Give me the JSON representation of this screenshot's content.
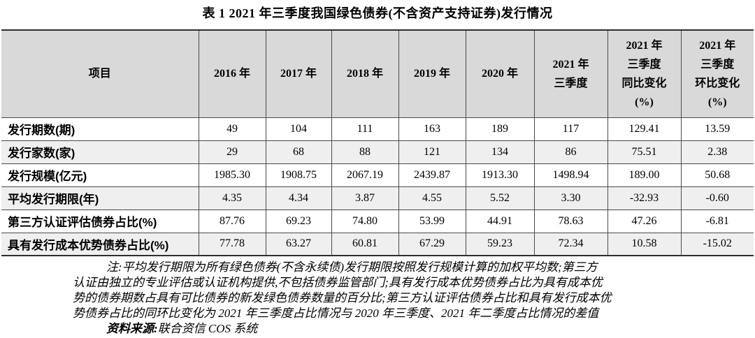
{
  "title": "表 1 2021 年三季度我国绿色债券(不含资产支持证券)发行情况",
  "table": {
    "header": [
      {
        "lines": [
          "项目"
        ]
      },
      {
        "lines": [
          "2016 年"
        ]
      },
      {
        "lines": [
          "2017 年"
        ]
      },
      {
        "lines": [
          "2018 年"
        ]
      },
      {
        "lines": [
          "2019 年"
        ]
      },
      {
        "lines": [
          "2020 年"
        ]
      },
      {
        "lines": [
          "2021 年",
          "三季度"
        ]
      },
      {
        "lines": [
          "2021 年",
          "三季度",
          "同比变化",
          "(%)"
        ]
      },
      {
        "lines": [
          "2021 年",
          "三季度",
          "环比变化",
          "(%)"
        ]
      }
    ],
    "rows": [
      {
        "label": "发行期数(期)",
        "values": [
          "49",
          "104",
          "111",
          "163",
          "189",
          "117",
          "129.41",
          "13.59"
        ]
      },
      {
        "label": "发行家数(家)",
        "values": [
          "29",
          "68",
          "88",
          "121",
          "134",
          "86",
          "75.51",
          "2.38"
        ]
      },
      {
        "label": "发行规模(亿元)",
        "values": [
          "1985.30",
          "1908.75",
          "2067.19",
          "2439.87",
          "1913.30",
          "1498.94",
          "189.00",
          "50.68"
        ]
      },
      {
        "label": "平均发行期限(年)",
        "values": [
          "4.35",
          "4.34",
          "3.87",
          "4.55",
          "5.52",
          "3.30",
          "-32.93",
          "-0.60"
        ]
      },
      {
        "label": "第三方认证评估债券占比(%)",
        "values": [
          "87.76",
          "69.23",
          "74.80",
          "53.99",
          "44.91",
          "78.63",
          "47.26",
          "-6.81"
        ]
      },
      {
        "label": "具有发行成本优势债券占比(%)",
        "values": [
          "77.78",
          "63.27",
          "60.81",
          "67.29",
          "59.23",
          "72.34",
          "10.58",
          "-15.02"
        ]
      }
    ]
  },
  "notes": {
    "lines": [
      "注:平均发行期限为所有绿色债券(不含永续债)发行期限按照发行规模计算的加权平均数;第三方",
      "认证由独立的专业评估或认证机构提供,不包括债券监管部门;具有发行成本优势债券占比为具有成本优",
      "势的债券期数占具有可比债券的新发绿色债券数量的百分比;第三方认证评估债券占比和具有发行成本优",
      "势债券占比的同环比变化为 2021 年三季度占比情况与 2020 年三季度、2021 年二季度占比情况的差值"
    ],
    "source_label": "资料来源:",
    "source_text": "联合资信 COS 系统"
  },
  "colors": {
    "header_bg": "#d9d9d9",
    "row_alt_bg": "#efefef",
    "border": "#4a4a4a"
  }
}
